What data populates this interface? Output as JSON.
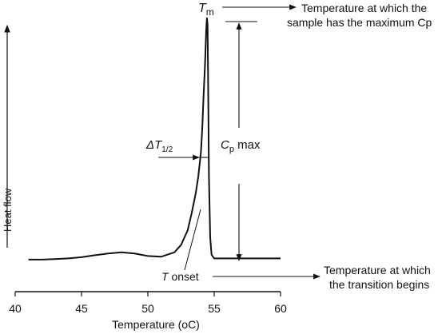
{
  "chart_data": {
    "type": "line",
    "title": "",
    "xlabel": "Temperature (oC)",
    "ylabel": "Heat flow",
    "xlim": [
      40,
      60
    ],
    "ylim": [
      0,
      1
    ],
    "xticks": [
      40,
      45,
      50,
      55,
      60
    ],
    "grid": false,
    "legend": "none",
    "series": [
      {
        "x": [
          41.0,
          42.0,
          43.0,
          44.0,
          45.0,
          46.0,
          47.0,
          48.0,
          49.0,
          50.0,
          51.0,
          52.0,
          52.5,
          53.0,
          53.3,
          53.6,
          53.8,
          54.0,
          54.1,
          54.2,
          54.3,
          54.4,
          54.45,
          54.5,
          54.55,
          54.6,
          54.7,
          54.8,
          55.0,
          56.0,
          57.0,
          58.0,
          59.0,
          60.0
        ],
        "y": [
          0.01,
          0.01,
          0.012,
          0.015,
          0.02,
          0.028,
          0.035,
          0.04,
          0.035,
          0.025,
          0.022,
          0.04,
          0.07,
          0.13,
          0.2,
          0.28,
          0.35,
          0.45,
          0.55,
          0.68,
          0.8,
          0.95,
          1.0,
          0.97,
          0.7,
          0.35,
          0.1,
          0.03,
          0.015,
          0.015,
          0.015,
          0.015,
          0.015,
          0.015
        ]
      }
    ],
    "annotations": {
      "tm": {
        "main": "T",
        "sub": "m"
      },
      "tm_desc": [
        "Temperature at which the",
        "sample has the maximum Cp"
      ],
      "delta": {
        "main": "ΔT",
        "sub": "1/2"
      },
      "cp": {
        "main": "C",
        "sub": "p",
        "rest": " max"
      },
      "tonset": {
        "main": "T",
        "rest": " onset"
      },
      "tonset_desc": [
        "Temperature at which",
        "the transition begins"
      ]
    }
  }
}
